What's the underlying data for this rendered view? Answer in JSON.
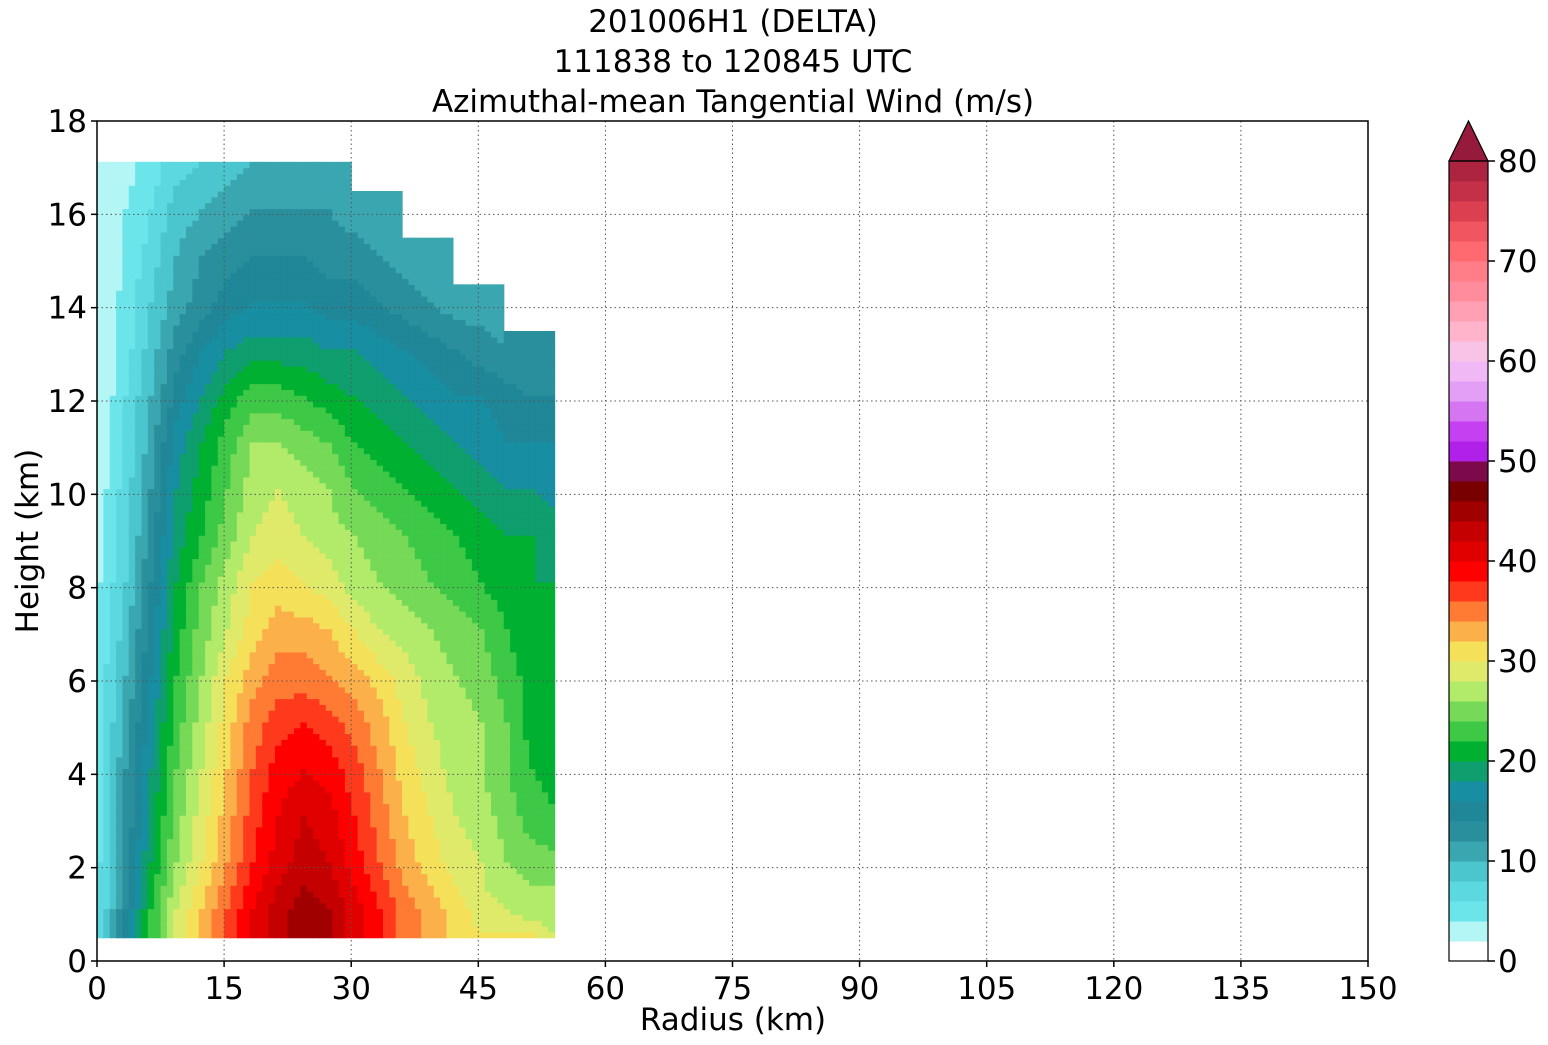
{
  "title_lines": [
    "201006H1 (DELTA)",
    "111838 to 120845 UTC",
    "Azimuthal-mean Tangential Wind (m/s)"
  ],
  "chart_data": {
    "type": "heatmap",
    "title": "201006H1 (DELTA) / 111838 to 120845 UTC / Azimuthal-mean Tangential Wind (m/s)",
    "xlabel": "Radius (km)",
    "ylabel": "Height (km)",
    "xlim": [
      0,
      150
    ],
    "ylim": [
      0,
      18
    ],
    "xticks": [
      0,
      15,
      30,
      45,
      60,
      75,
      90,
      105,
      120,
      135,
      150
    ],
    "yticks": [
      0,
      2,
      4,
      6,
      8,
      10,
      12,
      14,
      16,
      18
    ],
    "grid": true,
    "colorbar": {
      "levels_step": 2,
      "min": 0,
      "max": 80,
      "extend": "max",
      "ticks": [
        0,
        10,
        20,
        30,
        40,
        50,
        60,
        70,
        80
      ],
      "colors": [
        "#ffffff",
        "#b4f5f5",
        "#6be5ea",
        "#5cd9e0",
        "#4bc5ce",
        "#3aa6b0",
        "#2a8f9c",
        "#1f8797",
        "#178ea2",
        "#0f9e6e",
        "#00b131",
        "#3dc846",
        "#76d957",
        "#b2ea6a",
        "#dfea6a",
        "#f5e05a",
        "#fbb04a",
        "#ff7a32",
        "#ff3a1c",
        "#ff0000",
        "#e00000",
        "#c40000",
        "#a00000",
        "#780000",
        "#7c0a4a",
        "#b020e8",
        "#c440f0",
        "#d575f2",
        "#e39ef5",
        "#f0b8f5",
        "#f8c3e6",
        "#ffb4cc",
        "#ffa0b4",
        "#ff8c9c",
        "#ff7e88",
        "#ff6a70",
        "#f05560",
        "#dc4050",
        "#c43048",
        "#ac2440",
        "#961a3c"
      ]
    },
    "profiles": [
      {
        "z": 0.5,
        "v": [
          6,
          14,
          22,
          28,
          32,
          36,
          40,
          43,
          45,
          44,
          41,
          38,
          35,
          33,
          31,
          30,
          30,
          30,
          28
        ]
      },
      {
        "z": 1.0,
        "v": [
          6,
          14,
          22,
          28,
          32,
          36,
          40,
          43,
          45,
          44,
          41,
          38,
          35,
          33,
          31,
          29,
          28,
          27,
          26
        ]
      },
      {
        "z": 1.5,
        "v": [
          6,
          13,
          21,
          27,
          31,
          35,
          39,
          42,
          44,
          43,
          40,
          37,
          34,
          32,
          30,
          28,
          27,
          26,
          26
        ]
      },
      {
        "z": 2.0,
        "v": [
          6,
          13,
          20,
          26,
          30,
          34,
          38,
          41,
          43,
          42,
          39,
          36,
          33,
          31,
          29,
          28,
          26,
          25,
          25
        ]
      },
      {
        "z": 3.0,
        "v": [
          5,
          12,
          19,
          25,
          29,
          33,
          37,
          40,
          42,
          41,
          38,
          35,
          32,
          30,
          28,
          27,
          25,
          23,
          22
        ]
      },
      {
        "z": 4.0,
        "v": [
          5,
          12,
          18,
          24,
          28,
          32,
          36,
          39,
          40,
          39,
          37,
          34,
          31,
          29,
          27,
          26,
          24,
          22,
          21
        ]
      },
      {
        "z": 5.0,
        "v": [
          5,
          11,
          17,
          23,
          27,
          31,
          35,
          37,
          38,
          37,
          35,
          33,
          30,
          28,
          27,
          26,
          24,
          21,
          21
        ]
      },
      {
        "z": 6.0,
        "v": [
          5,
          10,
          16,
          22,
          26,
          30,
          33,
          35,
          35,
          34,
          33,
          31,
          29,
          27,
          26,
          25,
          23,
          21,
          21
        ]
      },
      {
        "z": 7.0,
        "v": [
          4,
          9,
          15,
          21,
          25,
          28,
          31,
          33,
          33,
          32,
          30,
          28,
          27,
          26,
          25,
          24,
          22,
          20,
          20
        ]
      },
      {
        "z": 8.0,
        "v": [
          4,
          8,
          14,
          20,
          24,
          27,
          30,
          31,
          30,
          29,
          27,
          26,
          25,
          24,
          23,
          22,
          21,
          20,
          20
        ]
      },
      {
        "z": 9.0,
        "v": [
          3,
          7,
          13,
          19,
          22,
          25,
          28,
          29,
          28,
          27,
          26,
          25,
          24,
          23,
          22,
          21,
          20,
          20,
          19
        ]
      },
      {
        "z": 10.0,
        "v": [
          3,
          7,
          12,
          18,
          21,
          24,
          27,
          28,
          27,
          26,
          24,
          23,
          22,
          21,
          20,
          19,
          18,
          18,
          17
        ]
      },
      {
        "z": 11.0,
        "v": [
          2,
          6,
          11,
          17,
          20,
          23,
          26,
          26,
          25,
          24,
          22,
          21,
          20,
          19,
          18,
          17,
          16,
          16,
          16
        ]
      },
      {
        "z": 12.0,
        "v": [
          2,
          6,
          10,
          15,
          18,
          21,
          23,
          23,
          22,
          21,
          20,
          19,
          18,
          17,
          16,
          16,
          15,
          14,
          14
        ]
      },
      {
        "z": 13.0,
        "v": [
          2,
          5,
          9,
          13,
          16,
          18,
          19,
          19,
          19,
          18,
          18,
          17,
          16,
          15,
          14,
          13,
          12,
          12,
          null
        ]
      },
      {
        "z": 14.0,
        "v": [
          2,
          5,
          8,
          11,
          13,
          15,
          16,
          16,
          16,
          15,
          15,
          14,
          13,
          12,
          11,
          11,
          null,
          null,
          null
        ]
      },
      {
        "z": 15.0,
        "v": [
          2,
          4,
          7,
          10,
          12,
          13,
          14,
          14,
          14,
          13,
          13,
          12,
          11,
          10,
          null,
          null,
          null,
          null,
          null
        ]
      },
      {
        "z": 16.0,
        "v": [
          2,
          4,
          6,
          9,
          10,
          11,
          12,
          12,
          12,
          12,
          11,
          11,
          null,
          null,
          null,
          null,
          null,
          null,
          null
        ]
      },
      {
        "z": 17.0,
        "v": [
          2,
          3,
          5,
          7,
          8,
          9,
          10,
          10,
          10,
          10,
          null,
          null,
          null,
          null,
          null,
          null,
          null,
          null,
          null
        ]
      }
    ],
    "radii": [
      0,
      3,
      6,
      9,
      12,
      15,
      18,
      21,
      24,
      27,
      30,
      33,
      36,
      39,
      42,
      45,
      48,
      51,
      54
    ]
  }
}
